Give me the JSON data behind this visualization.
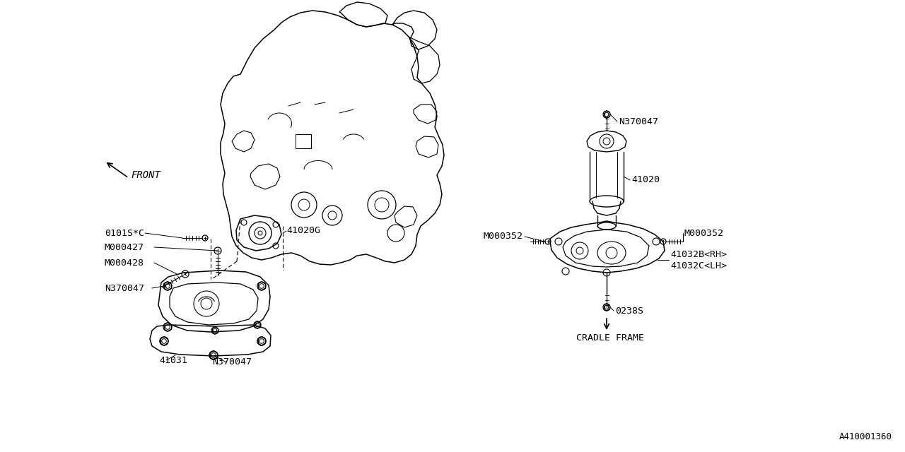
{
  "bg_color": "#ffffff",
  "line_color": "#000000",
  "diagram_id": "A410001360",
  "labels": {
    "front_label": "FRONT",
    "part_41020G": "41020G",
    "part_41031": "41031",
    "part_41020": "41020",
    "part_41032B": "41032B<RH>",
    "part_41032C": "41032C<LH>",
    "part_0101SC": "0101S*C",
    "part_M000427": "M000427",
    "part_M000428": "M000428",
    "part_N370047_top": "N370047",
    "part_N370047_left": "N370047",
    "part_N370047_bottom": "N370047",
    "part_M000352_left": "M000352",
    "part_M000352_right": "M000352",
    "part_0238S": "0238S",
    "cradle_frame": "CRADLE FRAME"
  },
  "font_size": 9.5,
  "font_size_id": 9
}
